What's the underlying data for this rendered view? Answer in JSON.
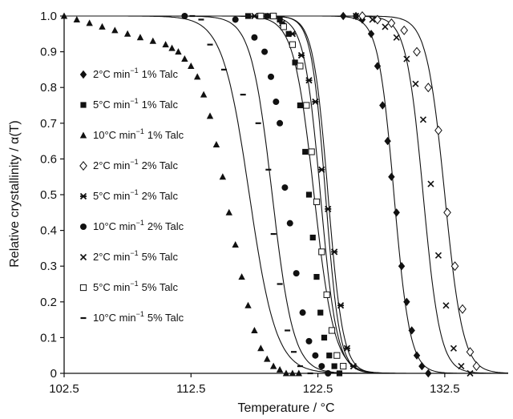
{
  "chart_data": {
    "type": "scatter",
    "xlabel": "Temperature / °C",
    "ylabel": "Relative crystallinity / α(T)",
    "xlim": [
      102.5,
      137.5
    ],
    "ylim": [
      0,
      1.0
    ],
    "x_ticks": [
      102.5,
      112.5,
      122.5,
      132.5
    ],
    "x_tick_labels": [
      "102.5",
      "112.5",
      "122.5",
      "132.5"
    ],
    "y_ticks": [
      0,
      0.1,
      0.2,
      0.3,
      0.4,
      0.5,
      0.6,
      0.7,
      0.8,
      0.9,
      1.0
    ],
    "y_tick_labels": [
      "0",
      "0.1",
      "0.2",
      "0.3",
      "0.4",
      "0.5",
      "0.6",
      "0.7",
      "0.8",
      "0.9",
      "1.0"
    ],
    "grid": false,
    "legend_position": "left",
    "series": [
      {
        "name": "2°C min-1 1% Talc",
        "legend": {
          "rate": "2°C min",
          "exp": "−1",
          "talc": "1% Talc"
        },
        "marker": "diamond",
        "x": [
          124.5,
          125.5,
          126.0,
          126.7,
          127.2,
          127.6,
          128.0,
          128.3,
          128.7,
          129.1,
          129.5,
          129.9,
          130.3,
          130.7,
          131.2
        ],
        "y": [
          1.0,
          1.0,
          0.99,
          0.95,
          0.86,
          0.75,
          0.65,
          0.55,
          0.45,
          0.3,
          0.2,
          0.12,
          0.05,
          0.02,
          0.0
        ]
      },
      {
        "name": "5°C min-1 1% Talc",
        "legend": {
          "rate": "5°C min",
          "exp": "−1",
          "talc": "1% Talc"
        },
        "marker": "square",
        "x": [
          117.0,
          118.5,
          119.5,
          120.2,
          120.7,
          121.1,
          121.5,
          121.8,
          122.1,
          122.4,
          122.7,
          123.0,
          123.4,
          123.8,
          124.2
        ],
        "y": [
          1.0,
          1.0,
          0.99,
          0.95,
          0.87,
          0.75,
          0.62,
          0.5,
          0.38,
          0.27,
          0.17,
          0.1,
          0.05,
          0.02,
          0.0
        ]
      },
      {
        "name": "10°C min-1 1% Talc",
        "legend": {
          "rate": "10°C min",
          "exp": "−1",
          "talc": "1% Talc"
        },
        "marker": "triangle",
        "x": [
          102.5,
          103.5,
          104.5,
          105.5,
          106.5,
          107.5,
          108.5,
          109.5,
          110.5,
          111.0,
          111.5,
          112.0,
          112.5,
          113.0,
          113.5,
          114.0,
          114.5,
          115.0,
          115.5,
          116.0,
          116.5,
          117.0,
          117.5,
          118.0,
          118.5,
          119.0,
          119.5,
          120.0,
          120.5,
          121.0
        ],
        "y": [
          1.0,
          0.99,
          0.98,
          0.97,
          0.96,
          0.95,
          0.94,
          0.93,
          0.92,
          0.91,
          0.9,
          0.88,
          0.86,
          0.83,
          0.78,
          0.72,
          0.64,
          0.55,
          0.45,
          0.36,
          0.27,
          0.19,
          0.12,
          0.07,
          0.04,
          0.02,
          0.01,
          0.0,
          0.0,
          0.0
        ]
      },
      {
        "name": "2°C min-1 2% Talc",
        "legend": {
          "rate": "2°C min",
          "exp": "−1",
          "talc": "2% Talc"
        },
        "marker": "open-diamond",
        "x": [
          126.0,
          127.2,
          128.3,
          129.3,
          130.3,
          131.2,
          132.0,
          132.7,
          133.3,
          133.9,
          134.5,
          135.0
        ],
        "y": [
          1.0,
          0.99,
          0.98,
          0.96,
          0.9,
          0.8,
          0.68,
          0.45,
          0.3,
          0.18,
          0.06,
          0.02
        ]
      },
      {
        "name": "5°C min-1 2% Talc",
        "legend": {
          "rate": "5°C min",
          "exp": "−1",
          "talc": "2% Talc"
        },
        "marker": "star",
        "x": [
          117.5,
          118.7,
          119.7,
          120.5,
          121.2,
          121.8,
          122.3,
          122.8,
          123.3,
          123.8,
          124.3,
          124.8,
          125.3
        ],
        "y": [
          1.0,
          1.0,
          0.98,
          0.95,
          0.89,
          0.82,
          0.76,
          0.57,
          0.46,
          0.34,
          0.19,
          0.07,
          0.02
        ]
      },
      {
        "name": "10°C min-1 2% Talc",
        "legend": {
          "rate": "10°C min",
          "exp": "−1",
          "talc": "2% Talc"
        },
        "marker": "circle",
        "x": [
          112.0,
          116.0,
          117.5,
          118.3,
          118.8,
          119.2,
          119.5,
          119.9,
          120.3,
          120.8,
          121.3,
          121.8,
          122.3,
          122.8,
          123.3
        ],
        "y": [
          1.0,
          0.99,
          0.94,
          0.9,
          0.83,
          0.76,
          0.7,
          0.52,
          0.42,
          0.28,
          0.17,
          0.09,
          0.05,
          0.02,
          0.0
        ]
      },
      {
        "name": "2°C min-1 5% Talc",
        "legend": {
          "rate": "2°C min",
          "exp": "−1",
          "talc": "5% Talc"
        },
        "marker": "x",
        "x": [
          125.5,
          126.8,
          127.8,
          128.7,
          129.5,
          130.2,
          130.8,
          131.4,
          132.0,
          132.6,
          133.2,
          133.8,
          134.5
        ],
        "y": [
          1.0,
          0.99,
          0.97,
          0.94,
          0.88,
          0.81,
          0.71,
          0.53,
          0.33,
          0.19,
          0.07,
          0.02,
          0.0
        ]
      },
      {
        "name": "5°C min-1 5% Talc",
        "legend": {
          "rate": "5°C min",
          "exp": "−1",
          "talc": "5% Talc"
        },
        "marker": "open-square",
        "x": [
          118.0,
          119.0,
          119.8,
          120.5,
          121.1,
          121.6,
          122.0,
          122.4,
          122.8,
          123.2,
          123.6,
          124.0,
          124.5
        ],
        "y": [
          1.0,
          1.0,
          0.97,
          0.92,
          0.86,
          0.75,
          0.62,
          0.48,
          0.34,
          0.22,
          0.12,
          0.05,
          0.02
        ]
      },
      {
        "name": "10°C min-1 5% Talc",
        "legend": {
          "rate": "10°C min",
          "exp": "−1",
          "talc": "5% Talc"
        },
        "marker": "dash",
        "x": [
          112.6,
          113.3,
          114.0,
          115.1,
          116.6,
          117.8,
          118.6,
          119.0,
          119.5,
          120.1,
          120.6,
          121.1,
          121.9
        ],
        "y": [
          1.0,
          0.99,
          0.92,
          0.85,
          0.78,
          0.7,
          0.57,
          0.39,
          0.25,
          0.12,
          0.06,
          0.02,
          0.0
        ]
      }
    ],
    "fit_curves": [
      {
        "x0": 117.1,
        "k": 0.95
      },
      {
        "x0": 118.9,
        "k": 1.2
      },
      {
        "x0": 122.2,
        "k": 1.25
      },
      {
        "x0": 122.7,
        "k": 1.55
      },
      {
        "x0": 123.1,
        "k": 1.8
      },
      {
        "x0": 123.3,
        "k": 1.7
      },
      {
        "x0": 128.5,
        "k": 1.6
      },
      {
        "x0": 130.8,
        "k": 1.5
      },
      {
        "x0": 132.5,
        "k": 1.4
      }
    ]
  }
}
